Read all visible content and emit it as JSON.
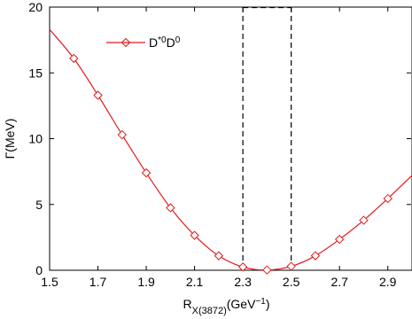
{
  "chart_data": {
    "type": "line",
    "xlabel": {
      "main": "R",
      "sub": "X(3872)",
      "units_pre": "(GeV",
      "units_sup": "−1",
      "units_post": ")"
    },
    "ylabel": "Γ(MeV)",
    "xlim": [
      1.5,
      3.0
    ],
    "ylim": [
      0,
      20
    ],
    "xticks": [
      1.5,
      1.7,
      1.9,
      2.1,
      2.3,
      2.5,
      2.7,
      2.9
    ],
    "xtick_labels": [
      "1.5",
      "1.7",
      "1.9",
      "2.1",
      "2.3",
      "2.5",
      "2.7",
      "2.9"
    ],
    "yticks": [
      0,
      5,
      10,
      15,
      20
    ],
    "ytick_labels": [
      "0",
      "5",
      "10",
      "15",
      "20"
    ],
    "legend": {
      "placement": "top-left",
      "entries": [
        {
          "base": "D",
          "sup1": "*0",
          "mid": "D",
          "sup2": "0"
        }
      ]
    },
    "series": [
      {
        "color": "#e31a1c",
        "marker": "diamond",
        "curve": [
          [
            1.5,
            18.3
          ],
          [
            1.6,
            16.1
          ],
          [
            1.7,
            13.3
          ],
          [
            1.8,
            10.3
          ],
          [
            1.9,
            7.4
          ],
          [
            2.0,
            4.75
          ],
          [
            2.1,
            2.65
          ],
          [
            2.2,
            1.1
          ],
          [
            2.3,
            0.25
          ],
          [
            2.4,
            0.02
          ],
          [
            2.5,
            0.3
          ],
          [
            2.6,
            1.1
          ],
          [
            2.7,
            2.35
          ],
          [
            2.8,
            3.8
          ],
          [
            2.9,
            5.45
          ],
          [
            3.0,
            7.2
          ]
        ],
        "markers": [
          [
            1.6,
            16.1
          ],
          [
            1.7,
            13.3
          ],
          [
            1.8,
            10.3
          ],
          [
            1.9,
            7.4
          ],
          [
            2.0,
            4.75
          ],
          [
            2.1,
            2.65
          ],
          [
            2.2,
            1.1
          ],
          [
            2.3,
            0.25
          ],
          [
            2.4,
            0.02
          ],
          [
            2.5,
            0.3
          ],
          [
            2.6,
            1.1
          ],
          [
            2.7,
            2.35
          ],
          [
            2.8,
            3.8
          ],
          [
            2.9,
            5.45
          ]
        ]
      }
    ],
    "highlight_region": {
      "x0": 2.3,
      "x1": 2.5,
      "style": "dashed"
    },
    "grid": false
  }
}
